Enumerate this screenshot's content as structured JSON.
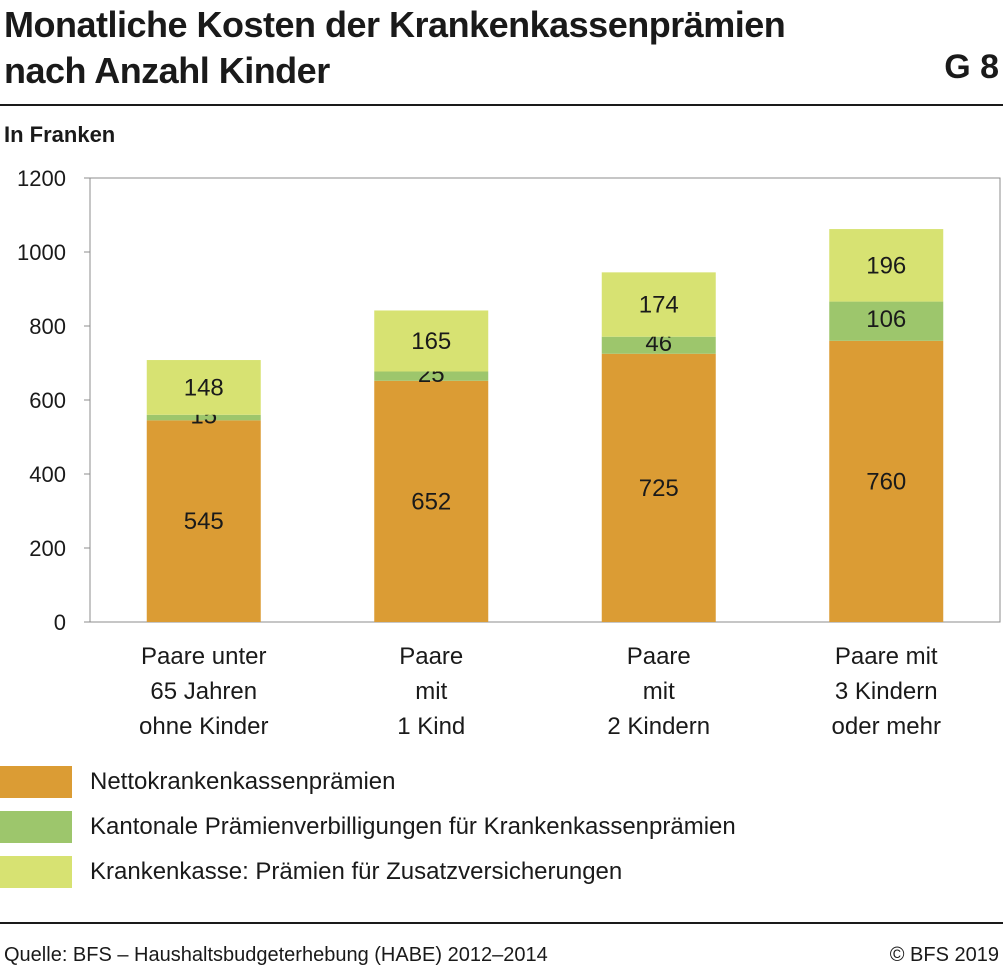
{
  "header": {
    "title_line1": "Monatliche Kosten der Krankenkassenprämien",
    "title_line2": "nach Anzahl Kinder",
    "graphic_number": "G 8",
    "unit_label": "In Franken"
  },
  "chart_data": {
    "type": "bar",
    "stacked": true,
    "categories": [
      [
        "Paare unter",
        "65 Jahren",
        "ohne Kinder"
      ],
      [
        "Paare",
        "mit",
        "1 Kind"
      ],
      [
        "Paare",
        "mit",
        "2 Kindern"
      ],
      [
        "Paare mit",
        "3 Kindern",
        "oder mehr"
      ]
    ],
    "series": [
      {
        "name": "Nettokrankenkassenprämien",
        "values": [
          545,
          652,
          725,
          760
        ],
        "color": "#db9c34"
      },
      {
        "name": "Kantonale Prämienverbilligungen für Krankenkassenprämien",
        "values": [
          15,
          25,
          46,
          106
        ],
        "color": "#9dc66c"
      },
      {
        "name": "Krankenkasse: Prämien für Zusatzversicherungen",
        "values": [
          148,
          165,
          174,
          196
        ],
        "color": "#d7e272"
      }
    ],
    "ylim": [
      0,
      1200
    ],
    "yticks": [
      0,
      200,
      400,
      600,
      800,
      1000,
      1200
    ],
    "grid": false,
    "legend_position": "bottom"
  },
  "footer": {
    "source": "Quelle: BFS – Haushaltsbudgeterhebung (HABE) 2012–2014",
    "copyright": "© BFS 2019"
  }
}
